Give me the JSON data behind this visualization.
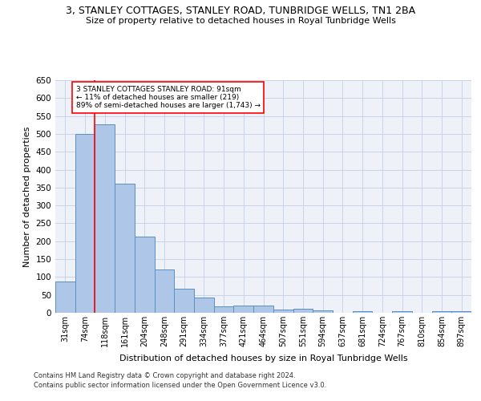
{
  "title1": "3, STANLEY COTTAGES, STANLEY ROAD, TUNBRIDGE WELLS, TN1 2BA",
  "title2": "Size of property relative to detached houses in Royal Tunbridge Wells",
  "xlabel": "Distribution of detached houses by size in Royal Tunbridge Wells",
  "ylabel": "Number of detached properties",
  "footnote1": "Contains HM Land Registry data © Crown copyright and database right 2024.",
  "footnote2": "Contains public sector information licensed under the Open Government Licence v3.0.",
  "bin_labels": [
    "31sqm",
    "74sqm",
    "118sqm",
    "161sqm",
    "204sqm",
    "248sqm",
    "291sqm",
    "334sqm",
    "377sqm",
    "421sqm",
    "464sqm",
    "507sqm",
    "551sqm",
    "594sqm",
    "637sqm",
    "681sqm",
    "724sqm",
    "767sqm",
    "810sqm",
    "854sqm",
    "897sqm"
  ],
  "bar_heights": [
    88,
    500,
    527,
    360,
    213,
    120,
    68,
    42,
    17,
    20,
    20,
    10,
    12,
    7,
    0,
    5,
    0,
    5,
    0,
    5,
    5
  ],
  "bar_color": "#aec6e8",
  "bar_edge_color": "#5a8fc0",
  "grid_color": "#c8d4e8",
  "background_color": "#eef2f8",
  "red_line_x": 1,
  "annotation_text": "3 STANLEY COTTAGES STANLEY ROAD: 91sqm\n← 11% of detached houses are smaller (219)\n89% of semi-detached houses are larger (1,743) →",
  "ylim": [
    0,
    650
  ],
  "yticks": [
    0,
    50,
    100,
    150,
    200,
    250,
    300,
    350,
    400,
    450,
    500,
    550,
    600,
    650
  ]
}
